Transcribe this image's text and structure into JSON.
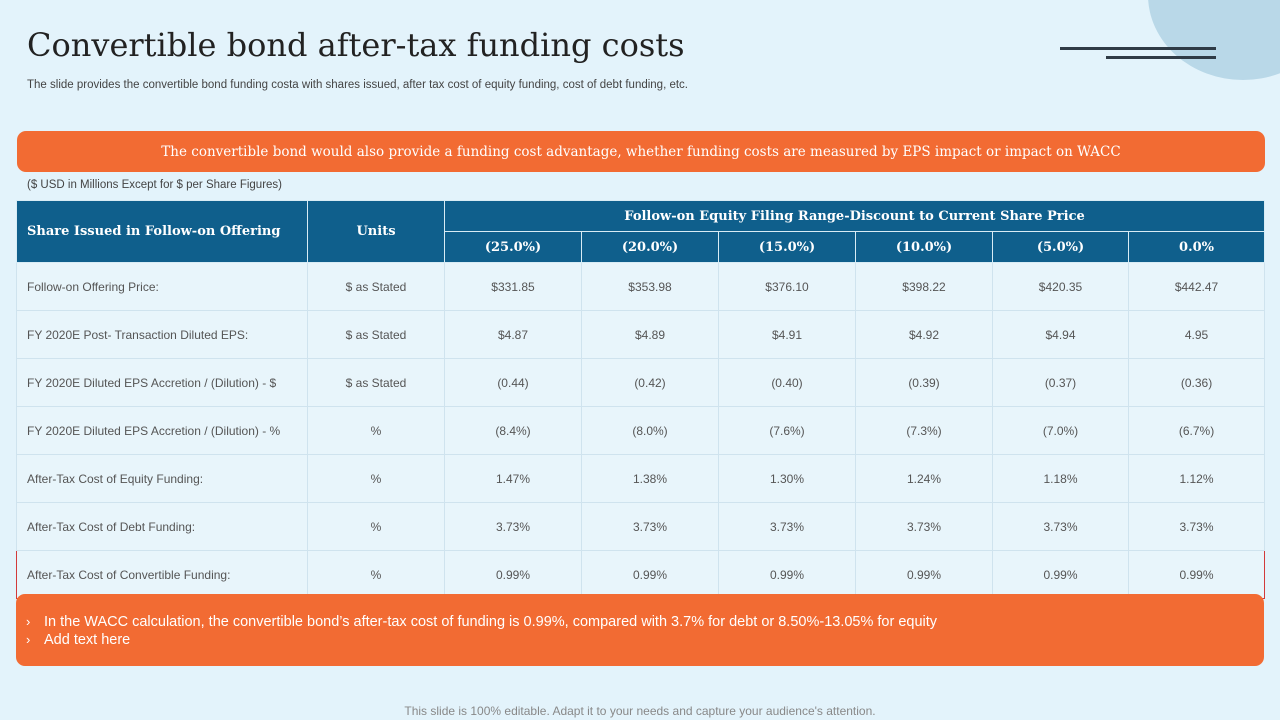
{
  "title": "Convertible bond after-tax funding costs",
  "subtitle": "The slide provides the convertible bond funding costa with shares issued, after tax  cost of equity funding, cost of debt funding, etc.",
  "banner": "The convertible bond would also provide a funding cost advantage, whether funding costs are measured by EPS impact or impact on WACC",
  "note": "($ USD in Millions Except for $ per Share Figures)",
  "table": {
    "header_first": "Share Issued in Follow-on Offering",
    "header_units": "Units",
    "header_group": "Follow-on Equity Filing Range-Discount to Current Share Price",
    "sub_headers": [
      "(25.0%)",
      "(20.0%)",
      "(15.0%)",
      "(10.0%)",
      "(5.0%)",
      "0.0%"
    ],
    "rows": [
      {
        "label": "Follow-on Offering Price:",
        "unit": "$ as Stated",
        "values": [
          "$331.85",
          "$353.98",
          "$376.10",
          "$398.22",
          "$420.35",
          "$442.47"
        ]
      },
      {
        "label": "FY 2020E Post- Transaction Diluted EPS:",
        "unit": "$ as Stated",
        "values": [
          "$4.87",
          "$4.89",
          "$4.91",
          "$4.92",
          "$4.94",
          "4.95"
        ]
      },
      {
        "label": "FY  2020E Diluted EPS Accretion / (Dilution) - $",
        "unit": "$ as Stated",
        "values": [
          "(0.44)",
          "(0.42)",
          "(0.40)",
          "(0.39)",
          "(0.37)",
          "(0.36)"
        ]
      },
      {
        "label": "FY  2020E Diluted EPS Accretion / (Dilution) - %",
        "unit": "%",
        "values": [
          "(8.4%)",
          "(8.0%)",
          "(7.6%)",
          "(7.3%)",
          "(7.0%)",
          "(6.7%)"
        ]
      },
      {
        "label": "After-Tax  Cost of Equity Funding:",
        "unit": "%",
        "values": [
          "1.47%",
          "1.38%",
          "1.30%",
          "1.24%",
          "1.18%",
          "1.12%"
        ]
      },
      {
        "label": "After-Tax  Cost of Debt Funding:",
        "unit": "%",
        "values": [
          "3.73%",
          "3.73%",
          "3.73%",
          "3.73%",
          "3.73%",
          "3.73%"
        ]
      },
      {
        "label": "After-Tax  Cost of Convertible Funding:",
        "unit": "%",
        "values": [
          "0.99%",
          "0.99%",
          "0.99%",
          "0.99%",
          "0.99%",
          "0.99%"
        ]
      }
    ]
  },
  "bullets": [
    "In the WACC calculation, the convertible bond’s after-tax cost of funding is 0.99%, compared with 3.7% for debt or 8.50%-13.05% for equity",
    "Add text here"
  ],
  "bullet_marker": "›",
  "footer": "This slide is 100% editable. Adapt it to your needs and capture your audience's attention.",
  "colors": {
    "accent": "#f26b33",
    "header": "#0f5f8c",
    "background": "#e3f3fb"
  }
}
